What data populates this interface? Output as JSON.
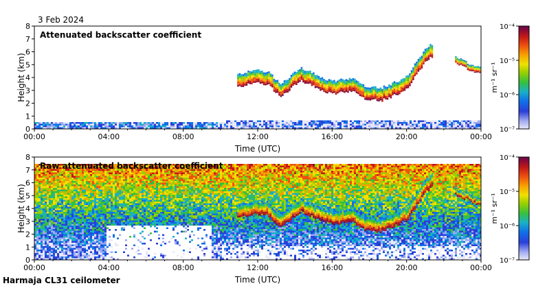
{
  "date_label": "3 Feb 2024",
  "instrument_label": "Harmaja CL31 ceilometer",
  "colors": {
    "background": "#ffffff",
    "frame": "#000000",
    "scale": [
      "#e8e8f8",
      "#9ea8f0",
      "#2a3fd8",
      "#1070e8",
      "#19b0c8",
      "#34c040",
      "#9ad000",
      "#f0e000",
      "#f8a000",
      "#ee5010",
      "#c01818",
      "#8a0a36",
      "#6a0a4a"
    ]
  },
  "chart_data": [
    {
      "type": "heatmap",
      "title": "Attenuated backscatter coefficient",
      "xlabel": "Time (UTC)",
      "ylabel": "Height (km)",
      "x_ticks": [
        "00:00",
        "04:00",
        "08:00",
        "12:00",
        "16:00",
        "20:00",
        "00:00"
      ],
      "x_range_hours": [
        0,
        24
      ],
      "y_ticks": [
        "0",
        "1",
        "2",
        "3",
        "4",
        "5",
        "6",
        "7",
        "8"
      ],
      "ylim": [
        0,
        8
      ],
      "colorbar": {
        "label": "m⁻¹ sr⁻¹",
        "ticks": [
          "10⁻⁷",
          "10⁻⁶",
          "10⁻⁵",
          "10⁻⁴"
        ],
        "range_log10": [
          -7,
          -4
        ]
      },
      "features": [
        {
          "name": "low-level backscatter",
          "hours": [
            0,
            10.3
          ],
          "top_km": 0.55,
          "log10": -6.5
        },
        {
          "name": "boundary layer",
          "hours": [
            10.3,
            24
          ],
          "top_km": 0.7,
          "log10": -6.7
        },
        {
          "name": "cloud layer",
          "points": [
            [
              10.9,
              3.4
            ],
            [
              11.9,
              3.7
            ],
            [
              12.5,
              3.6
            ],
            [
              13.2,
              2.6
            ],
            [
              13.8,
              3.3
            ],
            [
              14.3,
              3.9
            ],
            [
              15.0,
              3.4
            ],
            [
              15.6,
              3.0
            ],
            [
              16.2,
              2.9
            ],
            [
              17.0,
              3.1
            ],
            [
              17.8,
              2.4
            ],
            [
              18.6,
              2.3
            ],
            [
              19.4,
              2.8
            ],
            [
              20.0,
              3.2
            ],
            [
              20.6,
              4.6
            ],
            [
              21.1,
              5.5
            ],
            [
              21.4,
              5.8
            ]
          ],
          "thickness_km": 1.0
        },
        {
          "name": "upper cloud",
          "points": [
            [
              22.6,
              5.2
            ],
            [
              23.2,
              4.8
            ],
            [
              23.9,
              4.4
            ]
          ],
          "thickness_km": 0.5
        }
      ]
    },
    {
      "type": "heatmap",
      "title": "Raw attenuated backscatter coefficient",
      "xlabel": "Time (UTC)",
      "ylabel": "Height (km)",
      "x_ticks": [
        "00:00",
        "04:00",
        "08:00",
        "12:00",
        "16:00",
        "20:00",
        "00:00"
      ],
      "x_range_hours": [
        0,
        24
      ],
      "y_ticks": [
        "0",
        "1",
        "2",
        "3",
        "4",
        "5",
        "6",
        "7",
        "8"
      ],
      "ylim": [
        0,
        8
      ],
      "colorbar": {
        "label": "m⁻¹ sr⁻¹",
        "ticks": [
          "10⁻⁷",
          "10⁻⁶",
          "10⁻⁵",
          "10⁻⁴"
        ],
        "range_log10": [
          -7,
          -4
        ]
      },
      "features": [
        {
          "name": "noise field",
          "hours": [
            0,
            24
          ],
          "top_km": 7.6,
          "log10": -5.5
        },
        {
          "name": "cloud layer",
          "points": [
            [
              10.9,
              3.4
            ],
            [
              11.9,
              3.7
            ],
            [
              12.5,
              3.6
            ],
            [
              13.2,
              2.6
            ],
            [
              13.8,
              3.3
            ],
            [
              14.3,
              3.9
            ],
            [
              15.0,
              3.4
            ],
            [
              15.6,
              3.0
            ],
            [
              16.2,
              2.9
            ],
            [
              17.0,
              3.1
            ],
            [
              17.8,
              2.4
            ],
            [
              18.6,
              2.3
            ],
            [
              19.4,
              2.8
            ],
            [
              20.0,
              3.2
            ],
            [
              20.6,
              4.6
            ],
            [
              21.1,
              5.5
            ],
            [
              21.4,
              5.8
            ]
          ],
          "thickness_km": 1.0
        },
        {
          "name": "upper cloud",
          "points": [
            [
              22.6,
              5.2
            ],
            [
              23.2,
              4.8
            ],
            [
              23.9,
              4.4
            ]
          ],
          "thickness_km": 0.5
        }
      ]
    }
  ]
}
